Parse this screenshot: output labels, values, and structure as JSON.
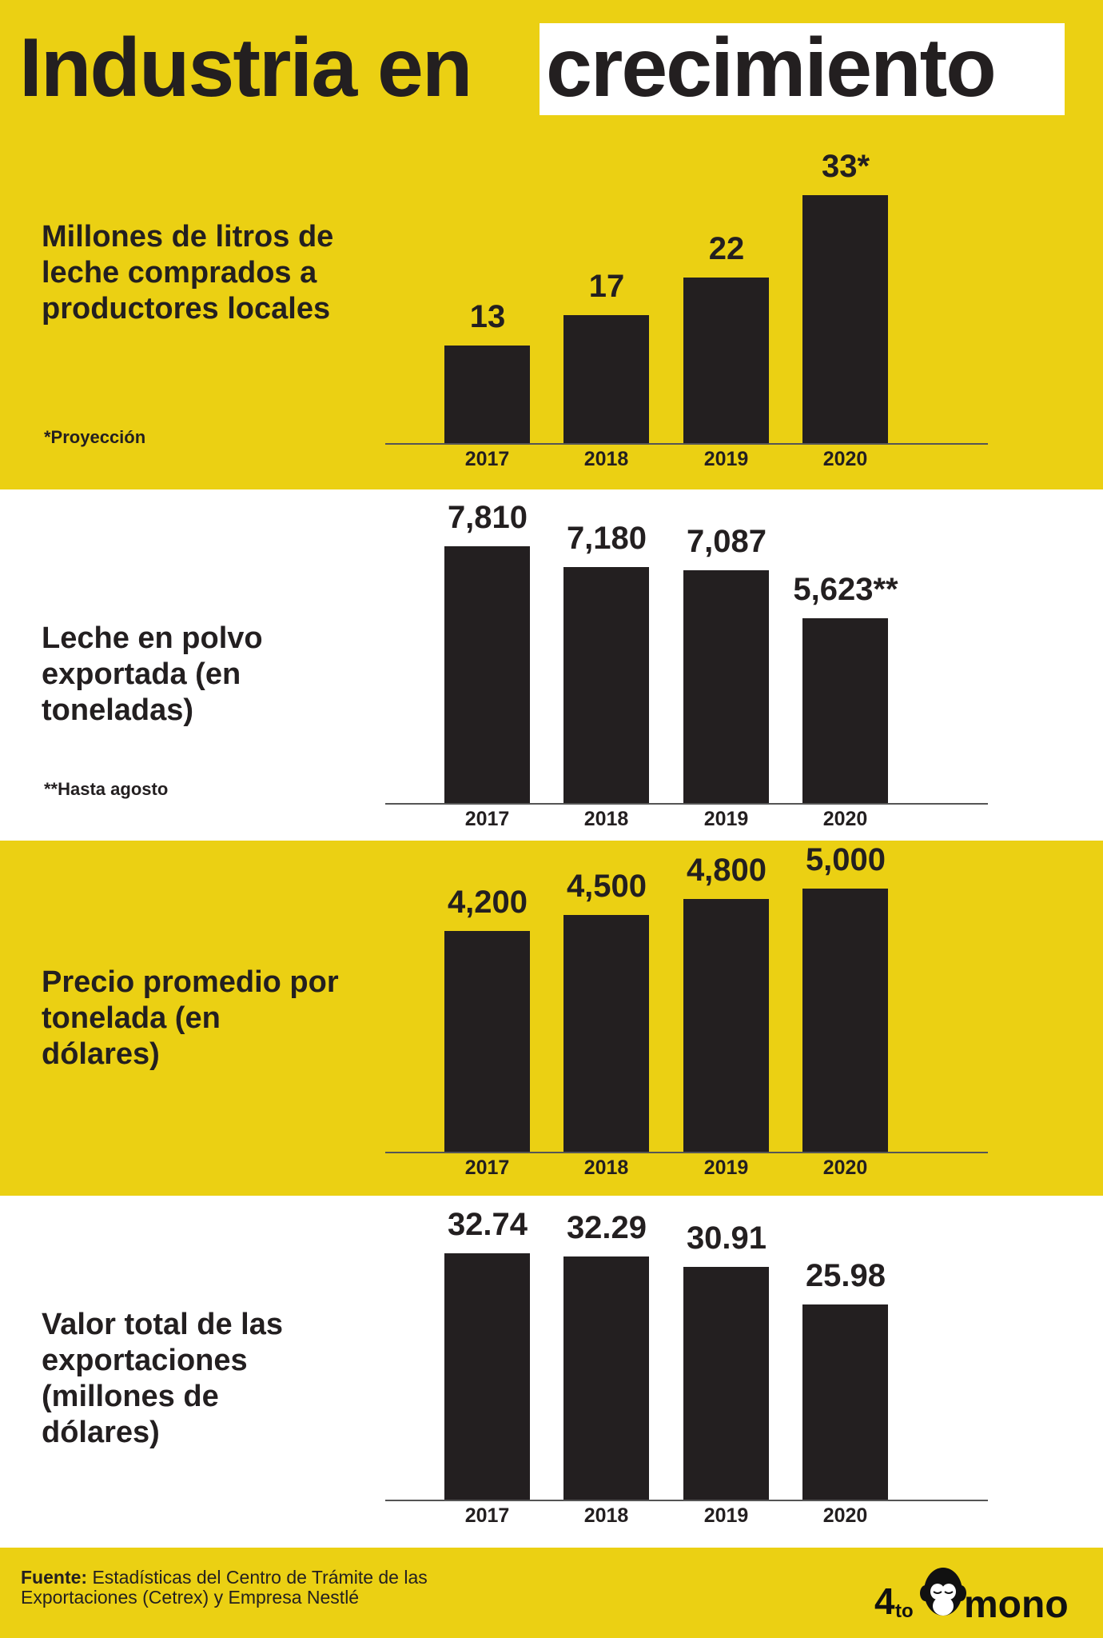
{
  "title": {
    "part1": "Industria en",
    "part2": "crecimiento"
  },
  "colors": {
    "yellow": "#ebd013",
    "bar": "#231f20",
    "white": "#ffffff"
  },
  "chart_data": [
    {
      "type": "bar",
      "title": "Millones de litros de leche comprados a productores locales",
      "note": "*Proyección",
      "categories": [
        "2017",
        "2018",
        "2019",
        "2020"
      ],
      "values": [
        13,
        17,
        22,
        33
      ],
      "labels": [
        "13",
        "17",
        "22",
        "33*"
      ],
      "background": "yellow"
    },
    {
      "type": "bar",
      "title": "Leche en polvo exportada (en toneladas)",
      "note": "**Hasta agosto",
      "categories": [
        "2017",
        "2018",
        "2019",
        "2020"
      ],
      "values": [
        7810,
        7180,
        7087,
        5623
      ],
      "labels": [
        "7,810",
        "7,180",
        "7,087",
        "5,623**"
      ],
      "background": "white"
    },
    {
      "type": "bar",
      "title": "Precio promedio por tonelada (en dólares)",
      "note": "",
      "categories": [
        "2017",
        "2018",
        "2019",
        "2020"
      ],
      "values": [
        4200,
        4500,
        4800,
        5000
      ],
      "labels": [
        "4,200",
        "4,500",
        "4,800",
        "5,000"
      ],
      "background": "yellow"
    },
    {
      "type": "bar",
      "title": "Valor total de las exportaciones (millones de dólares)",
      "note": "",
      "categories": [
        "2017",
        "2018",
        "2019",
        "2020"
      ],
      "values": [
        32.74,
        32.29,
        30.91,
        25.98
      ],
      "labels": [
        "32.74",
        "32.29",
        "30.91",
        "25.98"
      ],
      "background": "white"
    }
  ],
  "footer": {
    "source_label": "Fuente:",
    "source_text": " Estadísticas del Centro de Trámite de las",
    "source_text2": "Exportaciones (Cetrex) y Empresa Nestlé",
    "logo": "4tomono"
  }
}
